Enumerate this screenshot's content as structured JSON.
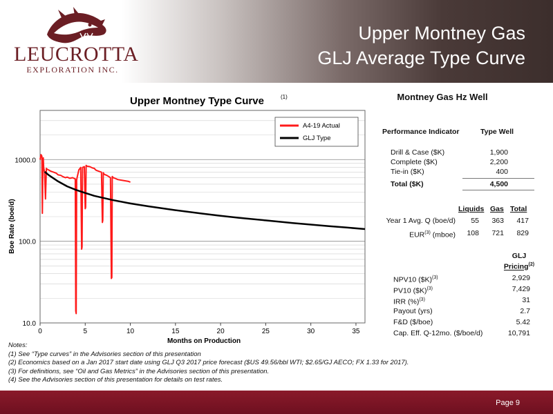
{
  "header": {
    "logo_name": "LEUCROTTA",
    "logo_sub": "EXPLORATION INC.",
    "title_line1": "Upper Montney Gas",
    "title_line2": "GLJ Average Type Curve"
  },
  "colors": {
    "brand": "#6b1e24",
    "actual": "#ff1a1a",
    "type": "#000000",
    "footer": "#7a1424"
  },
  "chart_data": {
    "type": "line",
    "title": "Upper Montney Type Curve",
    "title_sup": "(1)",
    "xlabel": "Months on Production",
    "ylabel": "Boe Rate (boe/d)",
    "xlim": [
      0,
      36
    ],
    "ylim": [
      10,
      4000
    ],
    "yscale": "log",
    "x_ticks": [
      0,
      5,
      10,
      15,
      20,
      25,
      30,
      35
    ],
    "y_ticks": [
      10,
      100,
      1000
    ],
    "y_tick_labels": [
      "10.0",
      "100.0",
      "1000.0"
    ],
    "grid": true,
    "legend": "top-right",
    "series": [
      {
        "name": "A4-19 Actual",
        "color": "#ff1a1a",
        "x": [
          0,
          0.1,
          0.2,
          0.25,
          0.3,
          0.35,
          0.4,
          0.5,
          0.6,
          0.7,
          0.8,
          1.0,
          1.2,
          1.5,
          1.8,
          2.0,
          2.3,
          2.5,
          2.8,
          3.0,
          3.3,
          3.6,
          3.9,
          3.95,
          4.0,
          4.05,
          4.1,
          4.3,
          4.5,
          4.6,
          4.65,
          4.7,
          4.9,
          5.0,
          5.05,
          5.1,
          5.2,
          5.5,
          5.8,
          6.0,
          6.2,
          6.5,
          6.8,
          6.9,
          6.95,
          7.0,
          7.1,
          7.4,
          7.6,
          7.8,
          7.9,
          7.95,
          8.0,
          8.1,
          8.3,
          8.6,
          9.0,
          9.4,
          9.8,
          10.0
        ],
        "y": [
          1000,
          1150,
          1100,
          220,
          650,
          1050,
          800,
          700,
          330,
          780,
          760,
          740,
          720,
          700,
          680,
          650,
          640,
          620,
          600,
          610,
          590,
          600,
          580,
          14,
          13,
          560,
          600,
          750,
          800,
          80,
          85,
          800,
          820,
          250,
          260,
          850,
          830,
          820,
          790,
          780,
          740,
          720,
          700,
          170,
          180,
          690,
          660,
          640,
          620,
          600,
          35,
          36,
          620,
          600,
          590,
          570,
          560,
          550,
          540,
          530
        ]
      },
      {
        "name": "GLJ Type",
        "color": "#000000",
        "x": [
          0.5,
          1,
          2,
          3,
          4,
          5,
          6,
          8,
          10,
          12,
          15,
          18,
          20,
          22,
          25,
          28,
          30,
          32,
          34,
          36
        ],
        "y": [
          710,
          640,
          540,
          470,
          425,
          390,
          360,
          320,
          290,
          268,
          240,
          218,
          205,
          194,
          180,
          167,
          160,
          153,
          147,
          141
        ]
      }
    ]
  },
  "panel": {
    "title": "Montney Gas Hz Well",
    "perf_header": "Performance Indicator",
    "type_header": "Type Well",
    "costs": [
      {
        "label": "Drill & Case ($K)",
        "value": "1,900"
      },
      {
        "label": "Complete ($K)",
        "value": "2,200"
      },
      {
        "label": "Tie-in ($K)",
        "value": "400"
      }
    ],
    "total_label": "Total ($K)",
    "total_value": "4,500",
    "prod_headers": {
      "liquids": "Liquids",
      "gas": "Gas",
      "total": "Total"
    },
    "prod_rows": [
      {
        "label": "Year 1 Avg. Q (boe/d)",
        "liquids": "55",
        "gas": "363",
        "total": "417"
      },
      {
        "label": "EUR",
        "sup": "(3)",
        "label2": " (mboe)",
        "liquids": "108",
        "gas": "721",
        "total": "829"
      }
    ],
    "glj_header_1": "GLJ",
    "glj_header_2": "Pricing",
    "glj_header_sup": "(2)",
    "econ_rows": [
      {
        "label": "NPV10 ($K)",
        "sup": "(3)",
        "value": "2,929"
      },
      {
        "label": "PV10 ($K)",
        "sup": "(3)",
        "value": "7,429"
      },
      {
        "label": "IRR (%)",
        "sup": "(3)",
        "value": "31"
      },
      {
        "label": "Payout (yrs)",
        "sup": "",
        "value": "2.7"
      },
      {
        "label": "F&D ($/boe)",
        "sup": "",
        "value": "5.42"
      },
      {
        "label": "Cap. Eff. Q-12mo. ($/boe/d)",
        "sup": "",
        "value": "10,791"
      }
    ]
  },
  "notes": {
    "heading": "Notes:",
    "items": [
      "(1)  See “Type curves” in the Advisories section of this presentation",
      "(2)  Economics based on a Jan 2017 start date using GLJ Q3 2017 price forecast ($US 49.56/bbl WTI; $2.65/GJ AECO; FX 1.33 for 2017).",
      "(3)  For definitions, see “Oil and Gas Metrics” in the Advisories section of this presentation.",
      "(4)  See the Advisories section of this presentation for details on test rates."
    ]
  },
  "footer": {
    "page": "Page 9"
  }
}
